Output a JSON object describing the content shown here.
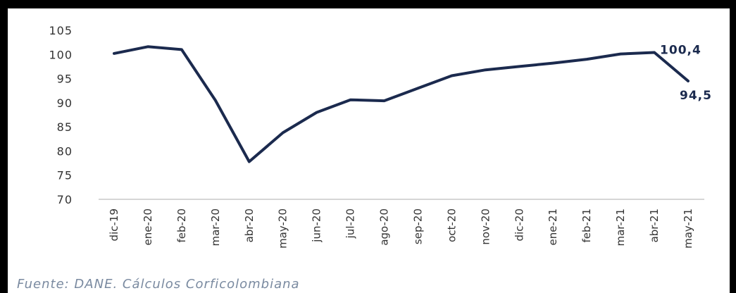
{
  "source_note": "Fuente: DANE. Cálculos Corficolombiana",
  "colors": {
    "line": "#1b2a4e",
    "axis": "#c8c8c8",
    "text": "#333333",
    "source": "#7a8aa0"
  },
  "chart_data": {
    "type": "line",
    "title": "",
    "xlabel": "",
    "ylabel": "",
    "ylim": [
      70,
      105
    ],
    "yticks": [
      "105",
      "100",
      "95",
      "90",
      "85",
      "80",
      "75",
      "70"
    ],
    "ytick_values": [
      105,
      100,
      95,
      90,
      85,
      80,
      75,
      70
    ],
    "categories": [
      "dic-19",
      "ene-20",
      "feb-20",
      "mar-20",
      "abr-20",
      "may-20",
      "jun-20",
      "jul-20",
      "ago-20",
      "sep-20",
      "oct-20",
      "nov-20",
      "dic-20",
      "ene-21",
      "feb-21",
      "mar-21",
      "abr-21",
      "may-21"
    ],
    "series": [
      {
        "values": [
          100.2,
          101.6,
          101.0,
          90.5,
          77.8,
          83.8,
          88.0,
          90.6,
          90.4,
          93.0,
          95.6,
          96.8,
          97.5,
          98.2,
          99.0,
          100.1,
          100.4,
          94.5
        ]
      }
    ],
    "data_labels": [
      {
        "index": 16,
        "text": "100,4"
      },
      {
        "index": 17,
        "text": "94,5"
      }
    ],
    "grid": false,
    "legend": "none"
  }
}
